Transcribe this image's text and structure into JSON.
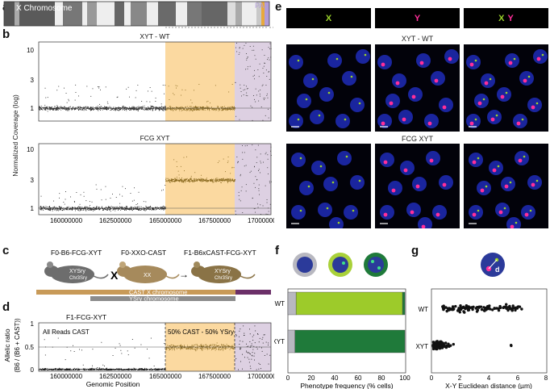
{
  "panels": {
    "a": "a",
    "b": "b",
    "c": "c",
    "d": "d",
    "e": "e",
    "f": "f",
    "g": "g"
  },
  "panel_a": {
    "chromosome_label": "X Chromosome",
    "par_label": "PAR",
    "colors": {
      "par": "#b19cd9",
      "gold": "#e8a93c",
      "dark": "#555555"
    }
  },
  "panel_b": {
    "top_title": "XYT - WT",
    "bottom_title": "FCG XYT",
    "ylabel": "Normalized Coverage (log)",
    "xticks": [
      "160000000",
      "162500000",
      "165000000",
      "167500000",
      "170000000"
    ],
    "yticks": [
      "10",
      "3",
      "1"
    ],
    "colors": {
      "gold_region": "#fbd9a0",
      "par_region": "#ddd0e2"
    }
  },
  "panel_c": {
    "f0_b6": "F0-B6-FCG-XYT",
    "f0_b6_geno": "XYSry",
    "f0_b6_chr": "Chr3Sry",
    "cross": "X",
    "f0_xxo": "F0-XXO-CAST",
    "f0_xxo_geno": "XX",
    "f1": "F1-B6xCAST-FCG-XYT",
    "f1_geno": "XYSry",
    "f1_chr": "Chr3Sry",
    "arrow": "→",
    "cast_x_label": "CAST X chromosome",
    "y_label": "YSry chromosome"
  },
  "panel_d": {
    "title": "F1-FCG-XYT",
    "all_reads": "All Reads CAST",
    "split_label": "50% CAST - 50% YSry",
    "ylabel_1": "Allelic ratio",
    "ylabel_2": "(B6 / (B6 + CAST))",
    "xlabel": "Genomic Position",
    "yticks": [
      "1",
      "0.5",
      "0"
    ],
    "xticks": [
      "160000000",
      "162500000",
      "165000000",
      "167500000",
      "170000000"
    ]
  },
  "panel_e": {
    "col_x": "X",
    "col_y": "Y",
    "col_xy_x": "X",
    "col_xy_y": "Y",
    "row1_title": "XYT - WT",
    "row2_title": "FCG XYT",
    "colors": {
      "x": "#9bd32a",
      "y": "#ff2e9a",
      "nuc": "#2233cc"
    }
  },
  "panel_f": {
    "xlabel": "Phenotype frequency (% cells)",
    "categories": [
      "WT",
      "XYT"
    ],
    "xticks": [
      "0",
      "20",
      "40",
      "60",
      "80",
      "100"
    ],
    "colors": {
      "grey": "#b8b8c0",
      "lime": "#9dcb2a",
      "green": "#1f7a3a"
    }
  },
  "panel_g": {
    "xlabel": "X-Y Euclidean distance (µm)",
    "categories": [
      "WT",
      "XYT"
    ],
    "xticks": [
      "0",
      "2",
      "4",
      "6",
      "8"
    ],
    "d_label": "d"
  },
  "chart_data": [
    {
      "type": "bar",
      "title": "",
      "xlabel": "Phenotype frequency (% cells)",
      "ylabel": "",
      "categories": [
        "WT",
        "XYT"
      ],
      "series": [
        {
          "values": [
            7,
            6
          ]
        },
        {
          "values": [
            91,
            0
          ]
        },
        {
          "values": [
            2,
            94
          ]
        }
      ],
      "xlim": [
        0,
        100
      ],
      "stacked": true,
      "orientation": "horizontal"
    },
    {
      "type": "scatter",
      "title": "",
      "xlabel": "X-Y Euclidean distance (µm)",
      "categories": [
        "WT",
        "XYT"
      ],
      "xlim": [
        0,
        8
      ],
      "note_ranges": {
        "WT": [
          0.7,
          6.3
        ],
        "XYT": [
          0.1,
          5.7
        ]
      }
    }
  ]
}
